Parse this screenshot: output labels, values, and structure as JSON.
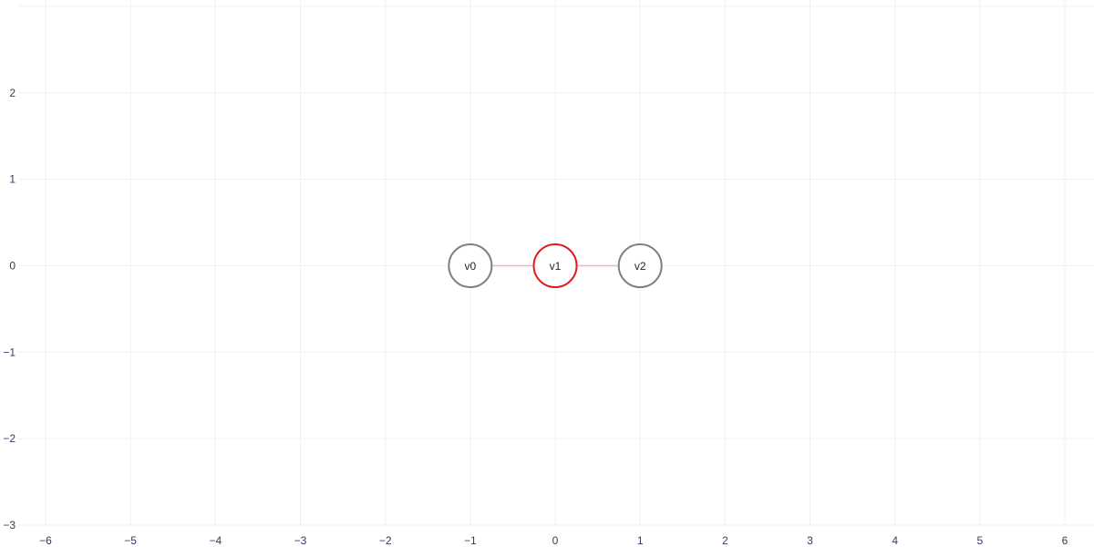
{
  "chart_data": {
    "type": "network",
    "title": "",
    "xlabel": "",
    "ylabel": "",
    "xlim": [
      -6.15,
      6.15
    ],
    "ylim": [
      -3,
      3
    ],
    "grid": true,
    "x_ticks": [
      -6,
      -5,
      -4,
      -3,
      -2,
      -1,
      0,
      1,
      2,
      3,
      4,
      5,
      6
    ],
    "y_ticks": [
      -3,
      -2,
      -1,
      0,
      1,
      2
    ],
    "x_tick_labels": [
      "−6",
      "−5",
      "−4",
      "−3",
      "−2",
      "−1",
      "0",
      "1",
      "2",
      "3",
      "4",
      "5",
      "6"
    ],
    "y_tick_labels": [
      "−3",
      "−2",
      "−1",
      "0",
      "1",
      "2"
    ],
    "nodes": [
      {
        "id": "v0",
        "label": "v0",
        "x": -1,
        "y": 0,
        "color": "#808080"
      },
      {
        "id": "v1",
        "label": "v1",
        "x": 0,
        "y": 0,
        "color": "#e31a1c"
      },
      {
        "id": "v2",
        "label": "v2",
        "x": 1,
        "y": 0,
        "color": "#808080"
      }
    ],
    "edges": [
      {
        "source": "v0",
        "target": "v1",
        "color": "#f4b6c2"
      },
      {
        "source": "v1",
        "target": "v2",
        "color": "#f4b6c2"
      }
    ]
  }
}
